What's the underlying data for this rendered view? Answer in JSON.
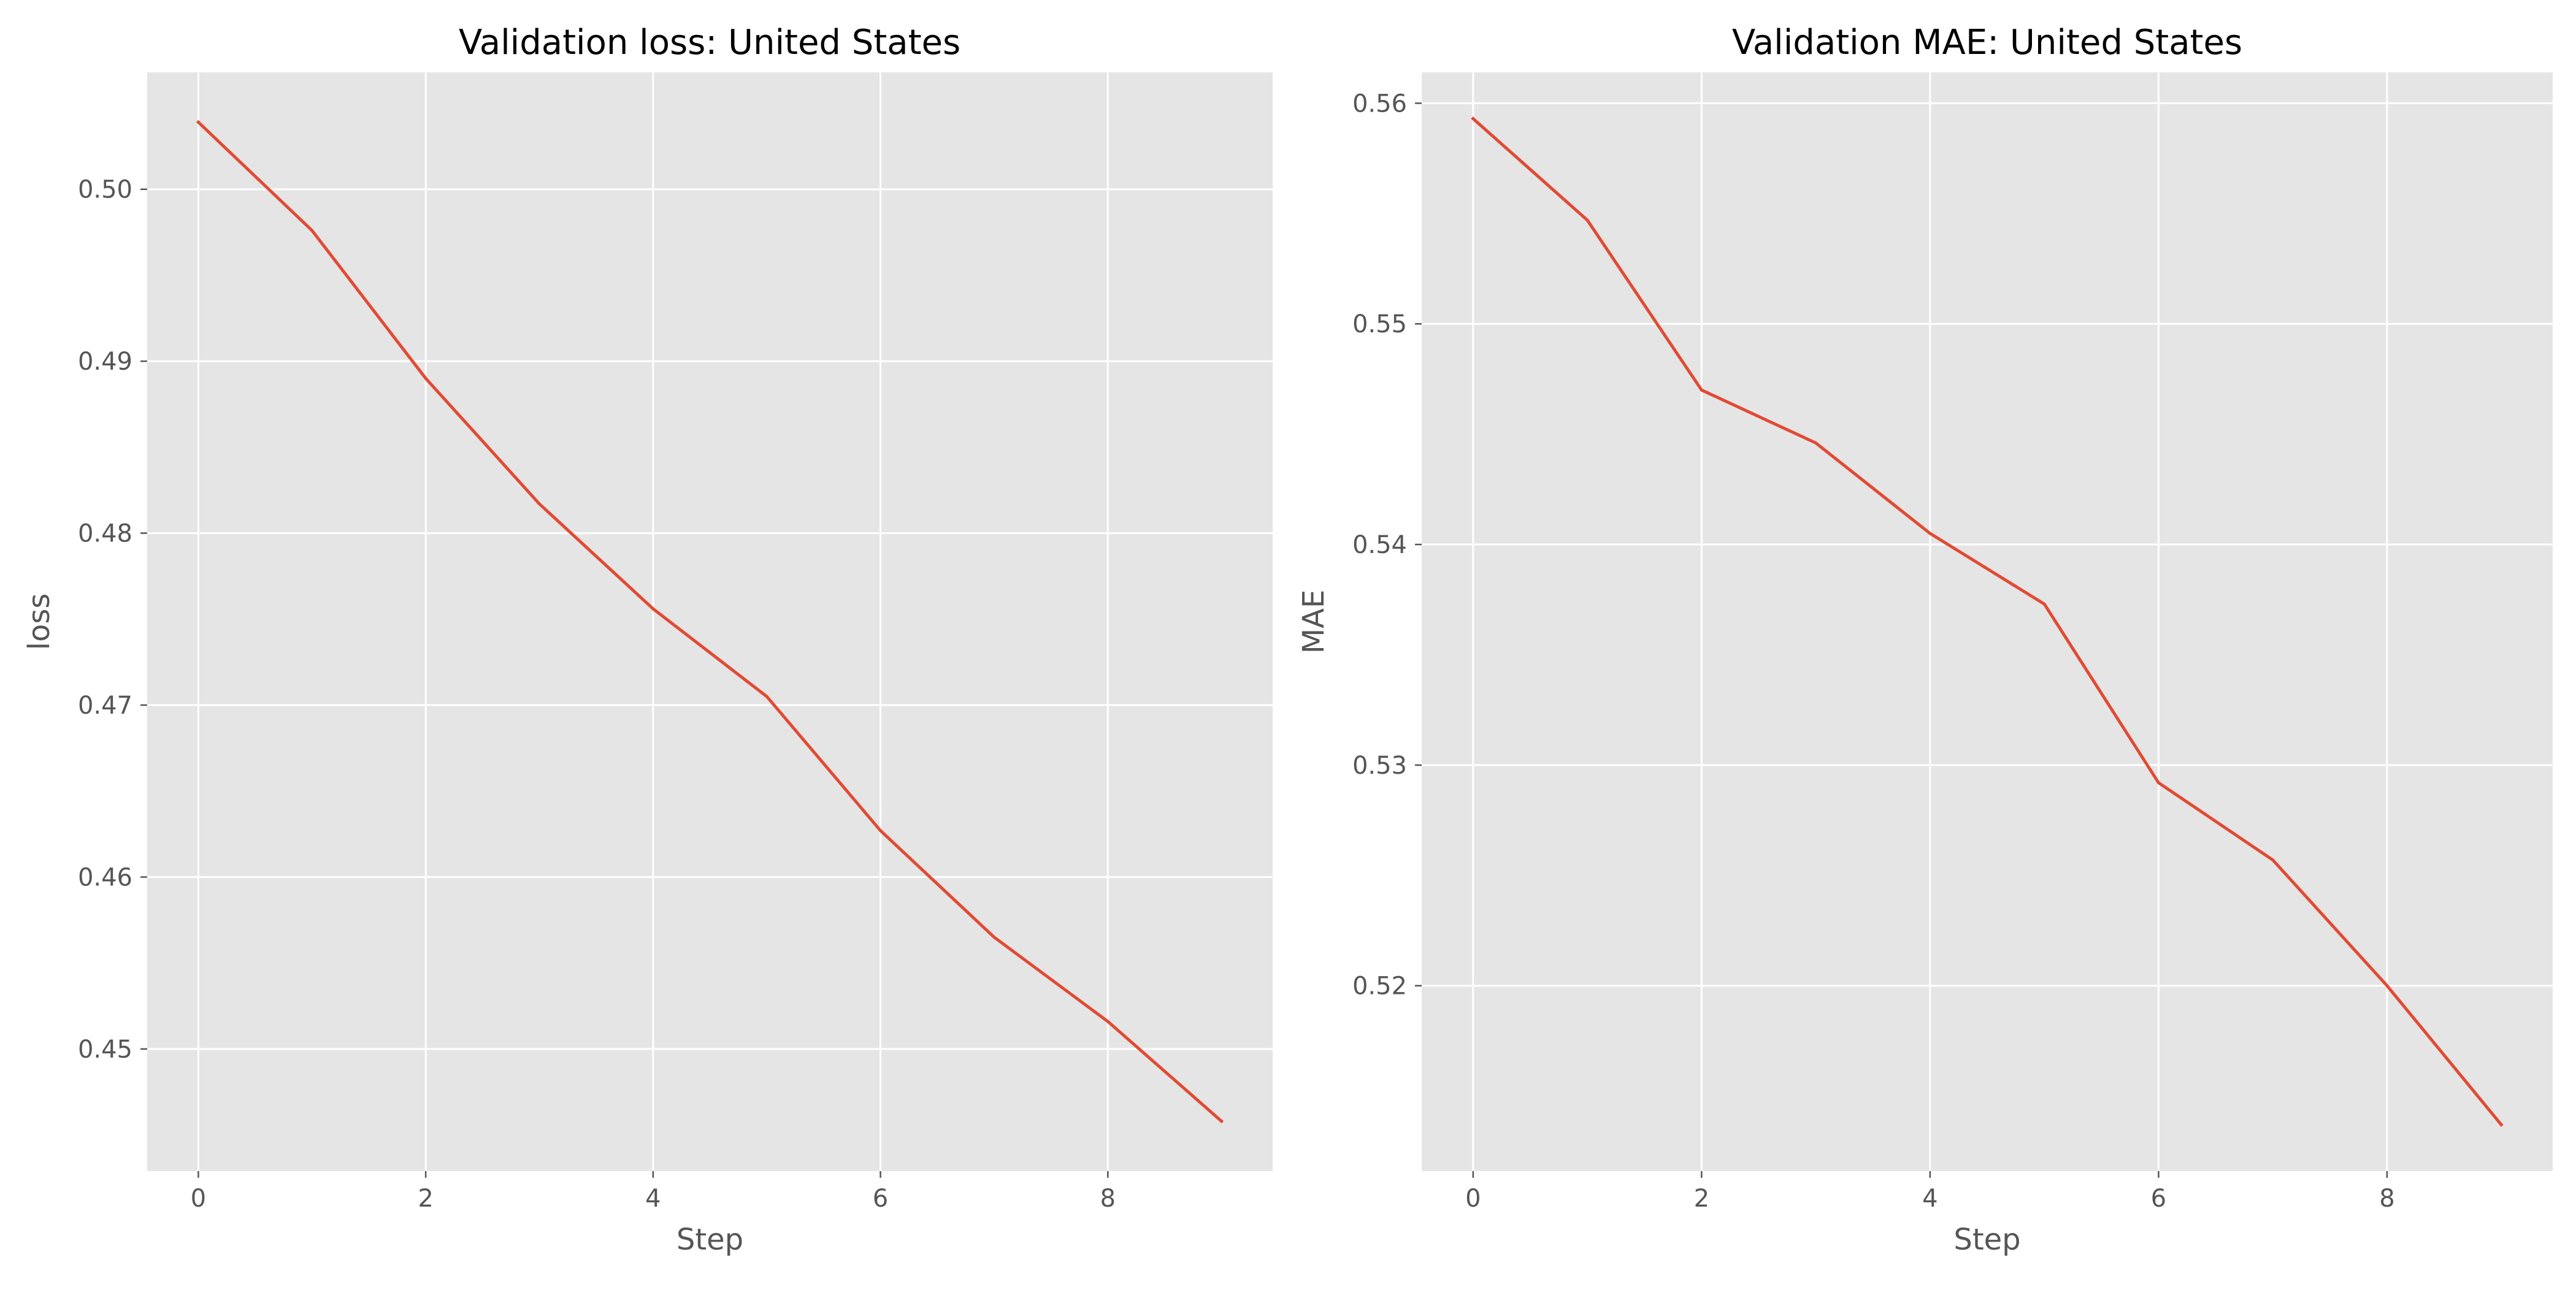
{
  "chart_data": [
    {
      "type": "line",
      "title": "Validation loss: United States",
      "xlabel": "Step",
      "ylabel": "loss",
      "x": [
        0,
        1,
        2,
        3,
        4,
        5,
        6,
        7,
        8,
        9
      ],
      "series": [
        {
          "values": [
            0.5039,
            0.4976,
            0.489,
            0.4817,
            0.4756,
            0.4705,
            0.4627,
            0.4565,
            0.4516,
            0.4458
          ]
        }
      ],
      "xlim": [
        -0.45,
        9.45
      ],
      "ylim": [
        0.4429,
        0.5068
      ],
      "xticks": [
        0,
        2,
        4,
        6,
        8
      ],
      "xtick_labels": [
        "0",
        "2",
        "4",
        "6",
        "8"
      ],
      "yticks": [
        0.45,
        0.46,
        0.47,
        0.48,
        0.49,
        0.5
      ],
      "ytick_labels": [
        "0.45",
        "0.46",
        "0.47",
        "0.48",
        "0.49",
        "0.50"
      ],
      "grid": true,
      "style": "ggplot",
      "line_color": "#E24A33",
      "plot_background": "#E5E5E5",
      "grid_color": "#FFFFFF"
    },
    {
      "type": "line",
      "title": "Validation MAE: United States",
      "xlabel": "Step",
      "ylabel": "MAE",
      "x": [
        0,
        1,
        2,
        3,
        4,
        5,
        6,
        7,
        8,
        9
      ],
      "series": [
        {
          "values": [
            0.5593,
            0.5547,
            0.547,
            0.5446,
            0.5405,
            0.5373,
            0.5292,
            0.5257,
            0.52,
            0.5137
          ]
        }
      ],
      "xlim": [
        -0.45,
        9.45
      ],
      "ylim": [
        0.5116,
        0.5614
      ],
      "xticks": [
        0,
        2,
        4,
        6,
        8
      ],
      "xtick_labels": [
        "0",
        "2",
        "4",
        "6",
        "8"
      ],
      "yticks": [
        0.52,
        0.53,
        0.54,
        0.55,
        0.56
      ],
      "ytick_labels": [
        "0.52",
        "0.53",
        "0.54",
        "0.55",
        "0.56"
      ],
      "grid": true,
      "style": "ggplot",
      "line_color": "#E24A33",
      "plot_background": "#E5E5E5",
      "grid_color": "#FFFFFF"
    }
  ]
}
